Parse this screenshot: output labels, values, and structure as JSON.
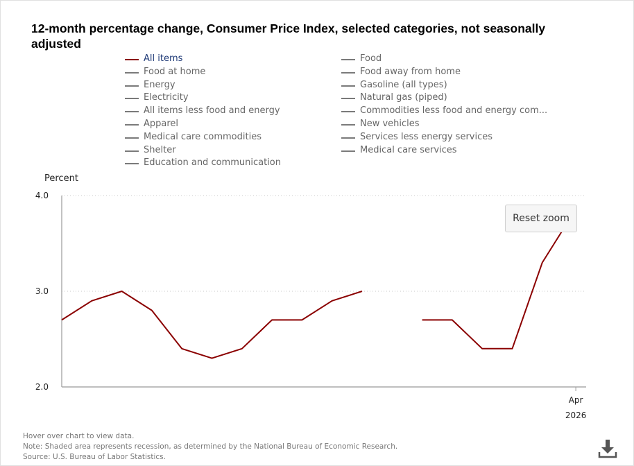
{
  "chart_data": {
    "type": "line",
    "title": "12-month percentage change, Consumer Price Index, selected categories, not seasonally adjusted",
    "ylabel": "Percent",
    "ylim": [
      2.0,
      4.0
    ],
    "yticks": [
      "4.0",
      "3.0",
      "2.0"
    ],
    "ytick_values": [
      4.0,
      3.0,
      2.0
    ],
    "grid": true,
    "x_tick_month": "Apr",
    "x_tick_year": "2026",
    "series": [
      {
        "name": "All items",
        "color": "#8b0000",
        "values": [
          2.7,
          2.9,
          3.0,
          2.8,
          2.4,
          2.3,
          2.4,
          2.7,
          2.7,
          2.9,
          3.0,
          null,
          2.7,
          2.7,
          2.4,
          2.4,
          3.3,
          3.8
        ]
      }
    ]
  },
  "legend": {
    "col1": [
      "All items",
      "Food at home",
      "Energy",
      "Electricity",
      "All items less food and energy",
      "Apparel",
      "Medical care commodities",
      "Shelter",
      "Education and communication"
    ],
    "col2": [
      "Food",
      "Food away from home",
      "Gasoline (all types)",
      "Natural gas (piped)",
      "Commodities less food and energy com...",
      "New vehicles",
      "Services less energy services",
      "Medical care services"
    ],
    "active": "All items"
  },
  "reset_zoom": "Reset zoom",
  "notes": {
    "hover": "Hover over chart to view data.",
    "note": "Note: Shaded area represents recession, as determined by the National Bureau of Economic Research.",
    "source": "Source: U.S. Bureau of Labor Statistics."
  },
  "icons": {
    "download": "download-icon"
  }
}
